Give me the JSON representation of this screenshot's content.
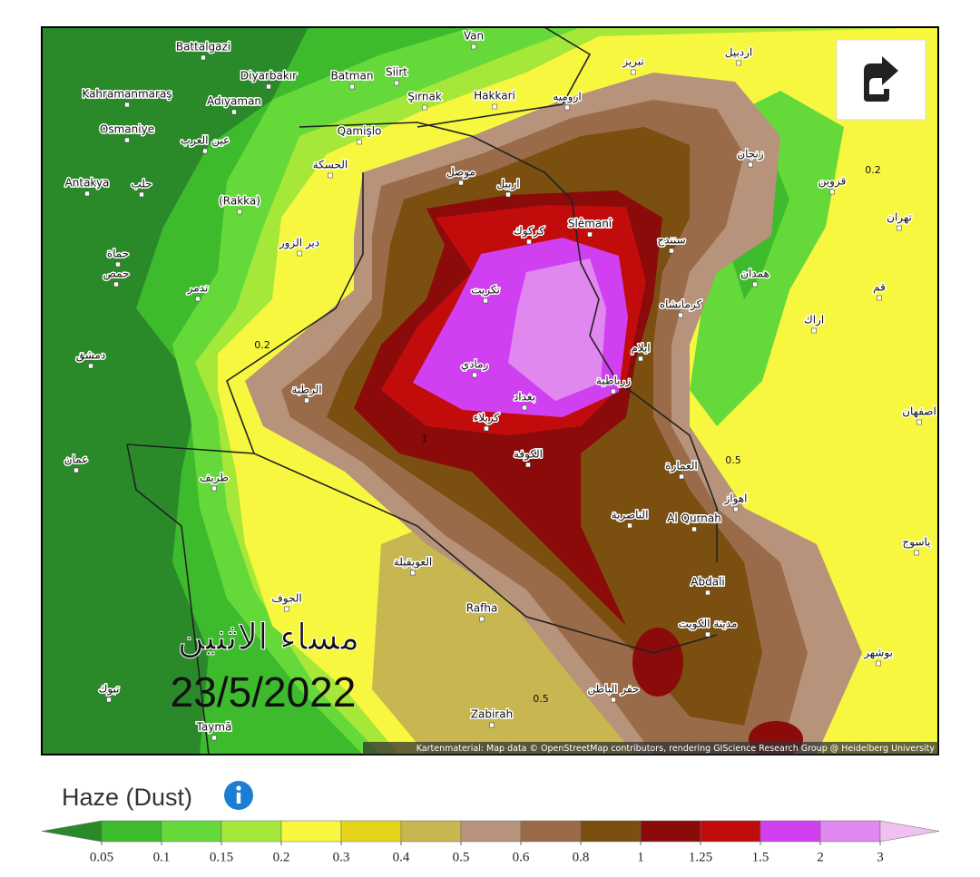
{
  "map": {
    "cities": [
      "Van",
      "Battalgazi",
      "Diyarbakır",
      "Batman",
      "Siirt",
      "Kahramanmaraş",
      "Adıyaman",
      "Şırnak",
      "Hakkari",
      "تبريز",
      "اردبيل",
      "ارومیه",
      "Osmaniye",
      "عين العرب",
      "Qamişlo",
      "Antakya",
      "حلب",
      "الحسكة",
      "موصل",
      "اربيل",
      "(Rakka)",
      "زنجان",
      "قزوين",
      "Slêmanî",
      "كركوك",
      "تكريت",
      "سنندج",
      "همدان",
      "كرمانشاه",
      "اراك",
      "قم",
      "تهران",
      "حمص",
      "حماة",
      "دمشق",
      "الرطبة",
      "رمادي",
      "بغداد",
      "زرباطية",
      "كربلاء",
      "الكوفة",
      "ايلام",
      "العمارة",
      "الناصرية",
      "Al Qurnah",
      "اهواز",
      "Abdali",
      "مدينة الكويت",
      "Rafha",
      "العويقيلة",
      "حفر الباطن",
      "Zabirah",
      "Taymā",
      "تبوك",
      "عمان",
      "طريف",
      "الجوف",
      "ياسوج",
      "بوشهر",
      "اصفهان",
      "دير الزور",
      "تدمر"
    ],
    "contour_labels": [
      "0.2",
      "0.2",
      "0.5",
      "0.5",
      "1"
    ],
    "overlay": {
      "day": "مساء الاثنين",
      "date": "23/5/2022"
    },
    "attribution": "Kartenmaterial: Map data © OpenStreetMap contributors, rendering GIScience Research Group @ Heidelberg University"
  },
  "legend": {
    "title": "Haze (Dust)",
    "ticks": [
      0.05,
      0.1,
      0.15,
      0.2,
      0.3,
      0.4,
      0.5,
      0.6,
      0.8,
      1,
      1.25,
      1.5,
      2,
      3
    ],
    "colors": [
      "#2a8a2a",
      "#3dbb2d",
      "#66d93a",
      "#a6e83a",
      "#f7f740",
      "#e5d51a",
      "#c8b650",
      "#b6937a",
      "#9a6b48",
      "#7a4f10",
      "#8b0a0a",
      "#c20c0c",
      "#d040f0",
      "#e088f0",
      "#f0c0f0"
    ]
  }
}
